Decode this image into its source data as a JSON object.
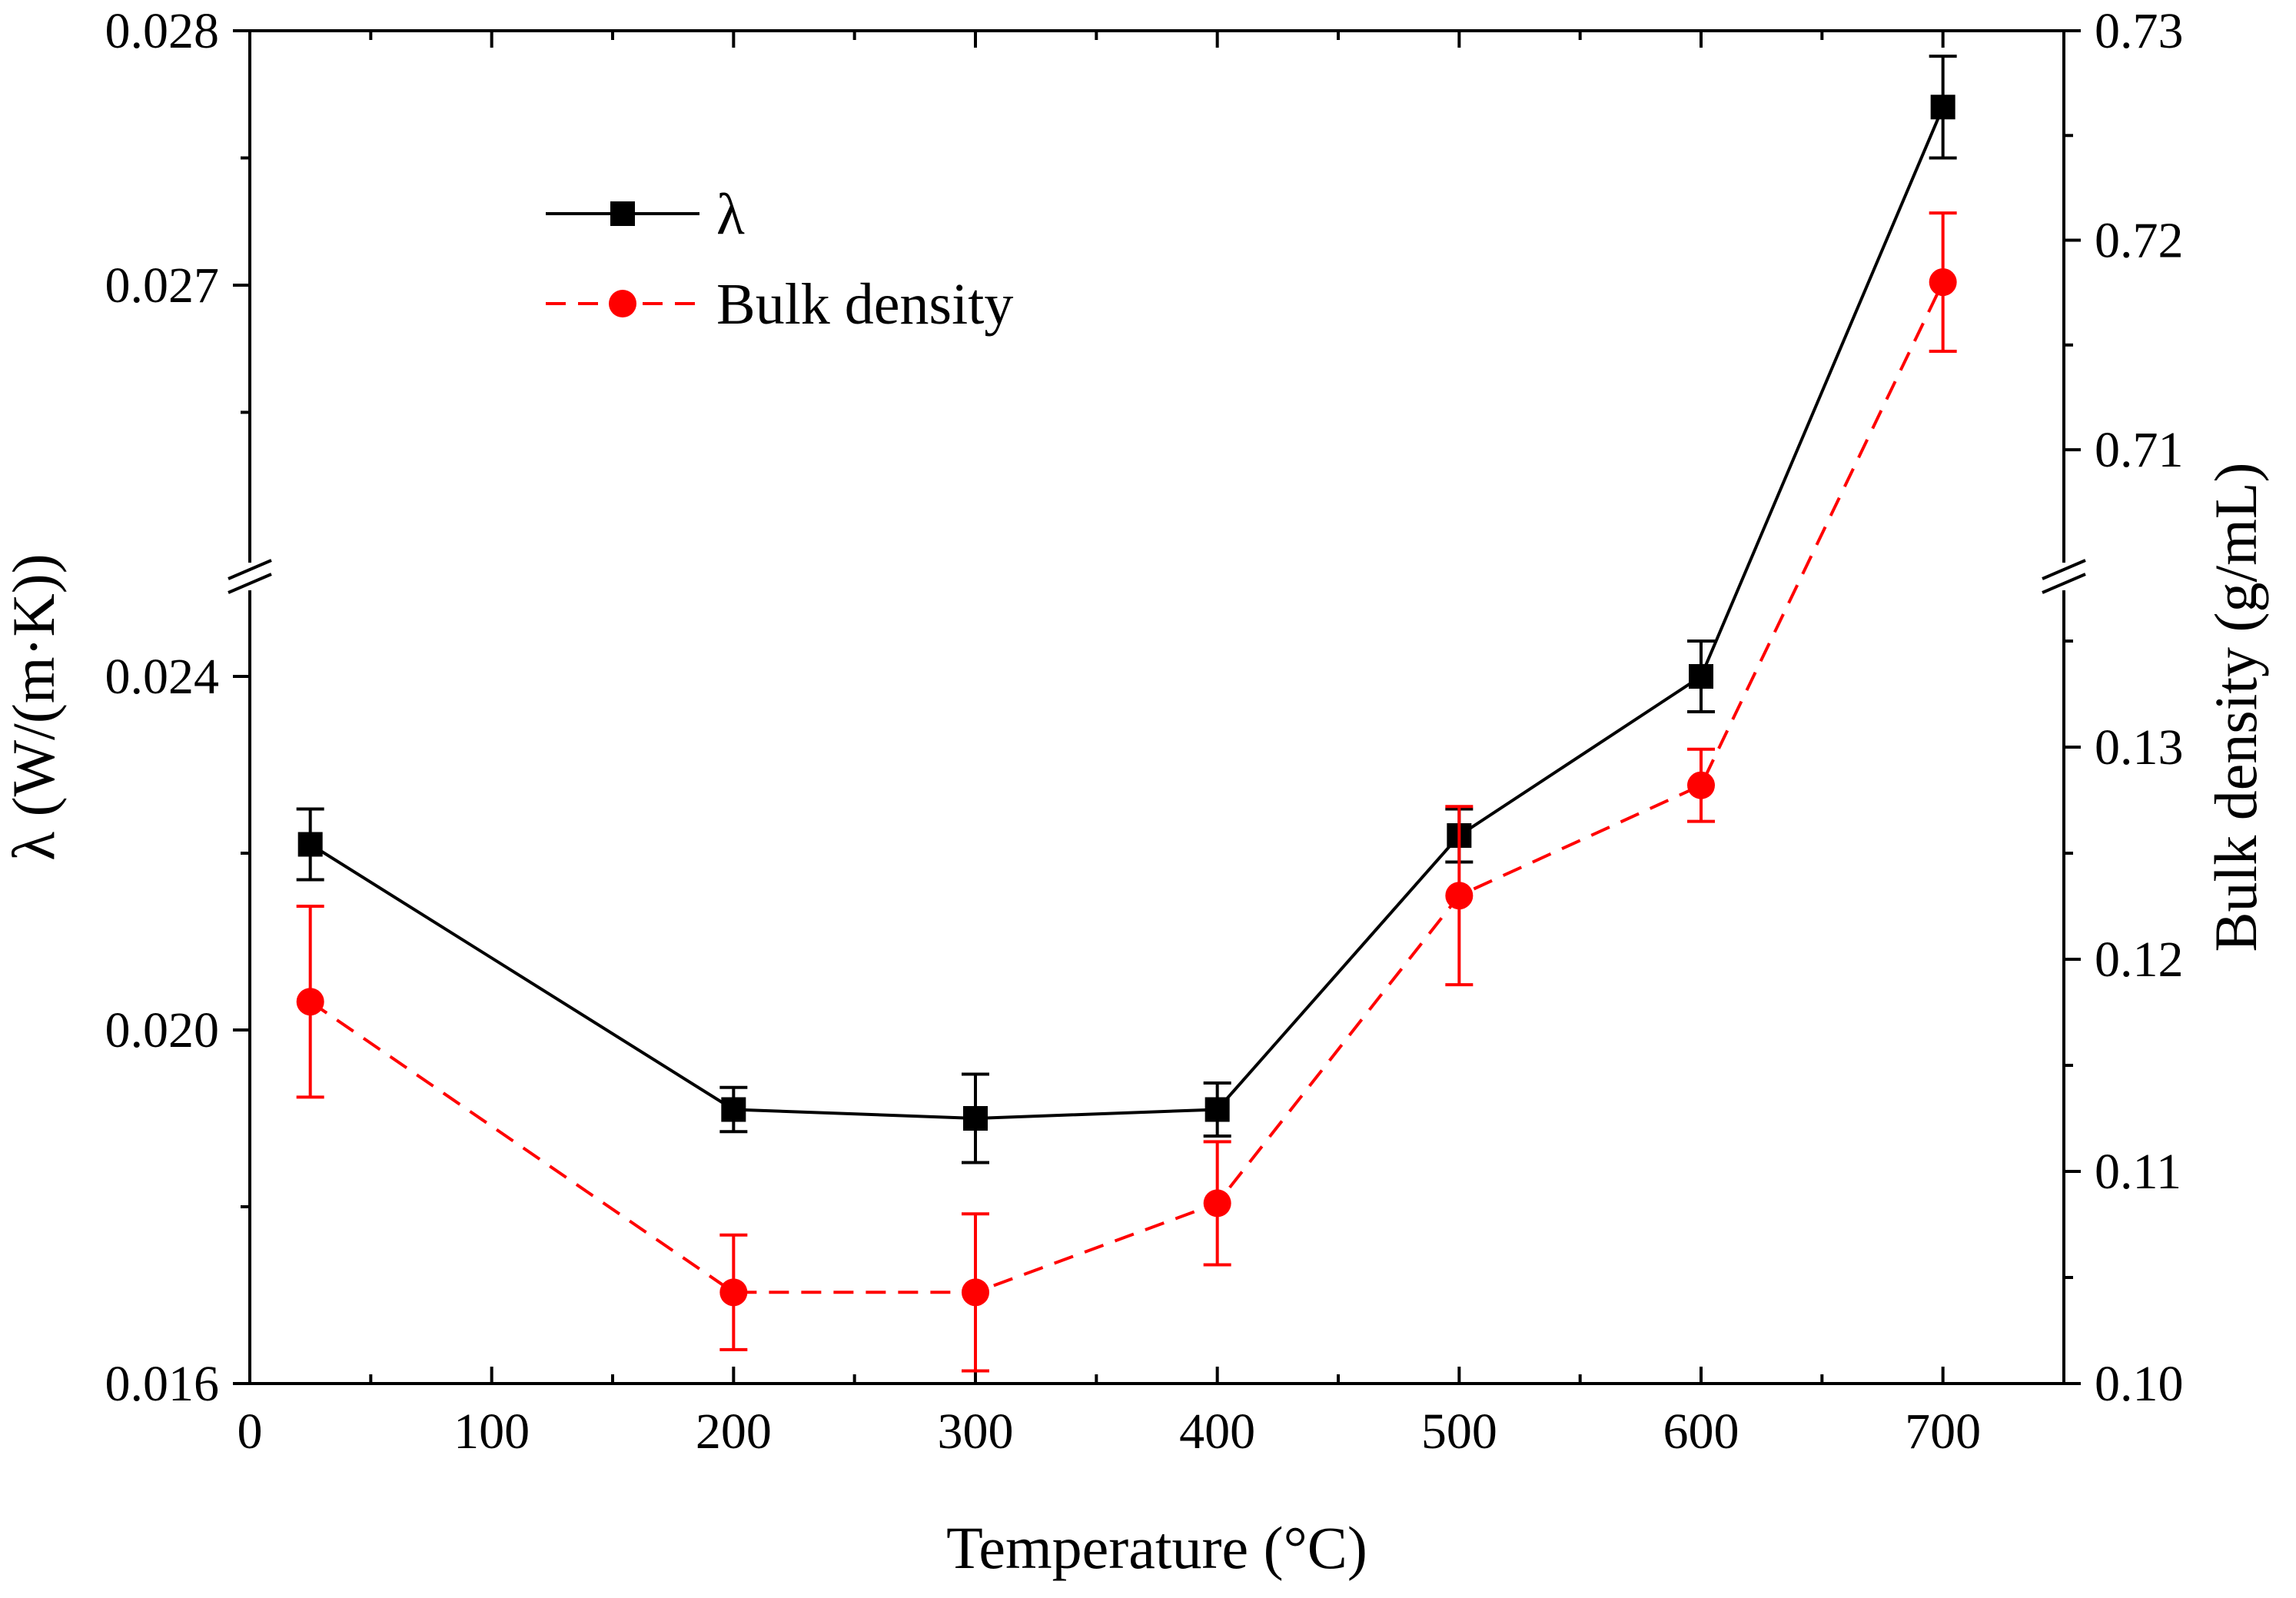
{
  "chart_data": {
    "type": "line",
    "title": "",
    "xlabel": "Temperature (°C)",
    "ylabel_left": "λ (W/(m·K))",
    "ylabel_right": "Bulk density (g/mL)",
    "xlim": [
      0,
      750
    ],
    "x_ticks": [
      0,
      100,
      200,
      300,
      400,
      500,
      600,
      700
    ],
    "x_tick_labels": [
      "0",
      "100",
      "200",
      "300",
      "400",
      "500",
      "600",
      "700"
    ],
    "axis_break": true,
    "y_left": {
      "lower_segment": {
        "range": [
          0.016,
          0.025
        ],
        "ticks": [
          0.016,
          0.02,
          0.024
        ],
        "tick_labels": [
          "0.016",
          "0.020",
          "0.024"
        ]
      },
      "upper_segment": {
        "range": [
          0.0259,
          0.028
        ],
        "ticks": [
          0.027,
          0.028
        ],
        "tick_labels": [
          "0.027",
          "0.028"
        ]
      }
    },
    "y_right": {
      "lower_segment": {
        "range": [
          0.1,
          0.1375
        ],
        "ticks": [
          0.1,
          0.11,
          0.12,
          0.13
        ],
        "tick_labels": [
          "0.10",
          "0.11",
          "0.12",
          "0.13"
        ]
      },
      "upper_segment": {
        "range": [
          0.7045,
          0.73
        ],
        "ticks": [
          0.71,
          0.72,
          0.73
        ],
        "tick_labels": [
          "0.71",
          "0.72",
          "0.73"
        ]
      }
    },
    "legend": {
      "position": "top-left",
      "entries": [
        "λ",
        "Bulk density"
      ]
    },
    "series": [
      {
        "name": "λ",
        "axis": "left",
        "color": "#000000",
        "marker": "square",
        "line_style": "solid",
        "x": [
          25,
          200,
          300,
          400,
          500,
          600,
          700
        ],
        "y": [
          0.0221,
          0.0191,
          0.019,
          0.0191,
          0.0222,
          0.024,
          0.0277
        ],
        "error": [
          0.0004,
          0.00025,
          0.0005,
          0.0003,
          0.0003,
          0.0004,
          0.0002
        ]
      },
      {
        "name": "Bulk density",
        "axis": "right",
        "color": "#ff0000",
        "marker": "circle",
        "line_style": "dashed",
        "x": [
          25,
          200,
          300,
          400,
          500,
          600,
          700
        ],
        "y": [
          0.118,
          0.1043,
          0.1043,
          0.1085,
          0.123,
          0.1282,
          0.718
        ],
        "error": [
          0.0045,
          0.0027,
          0.0037,
          0.0029,
          0.0042,
          0.0017,
          0.0033
        ]
      }
    ]
  }
}
